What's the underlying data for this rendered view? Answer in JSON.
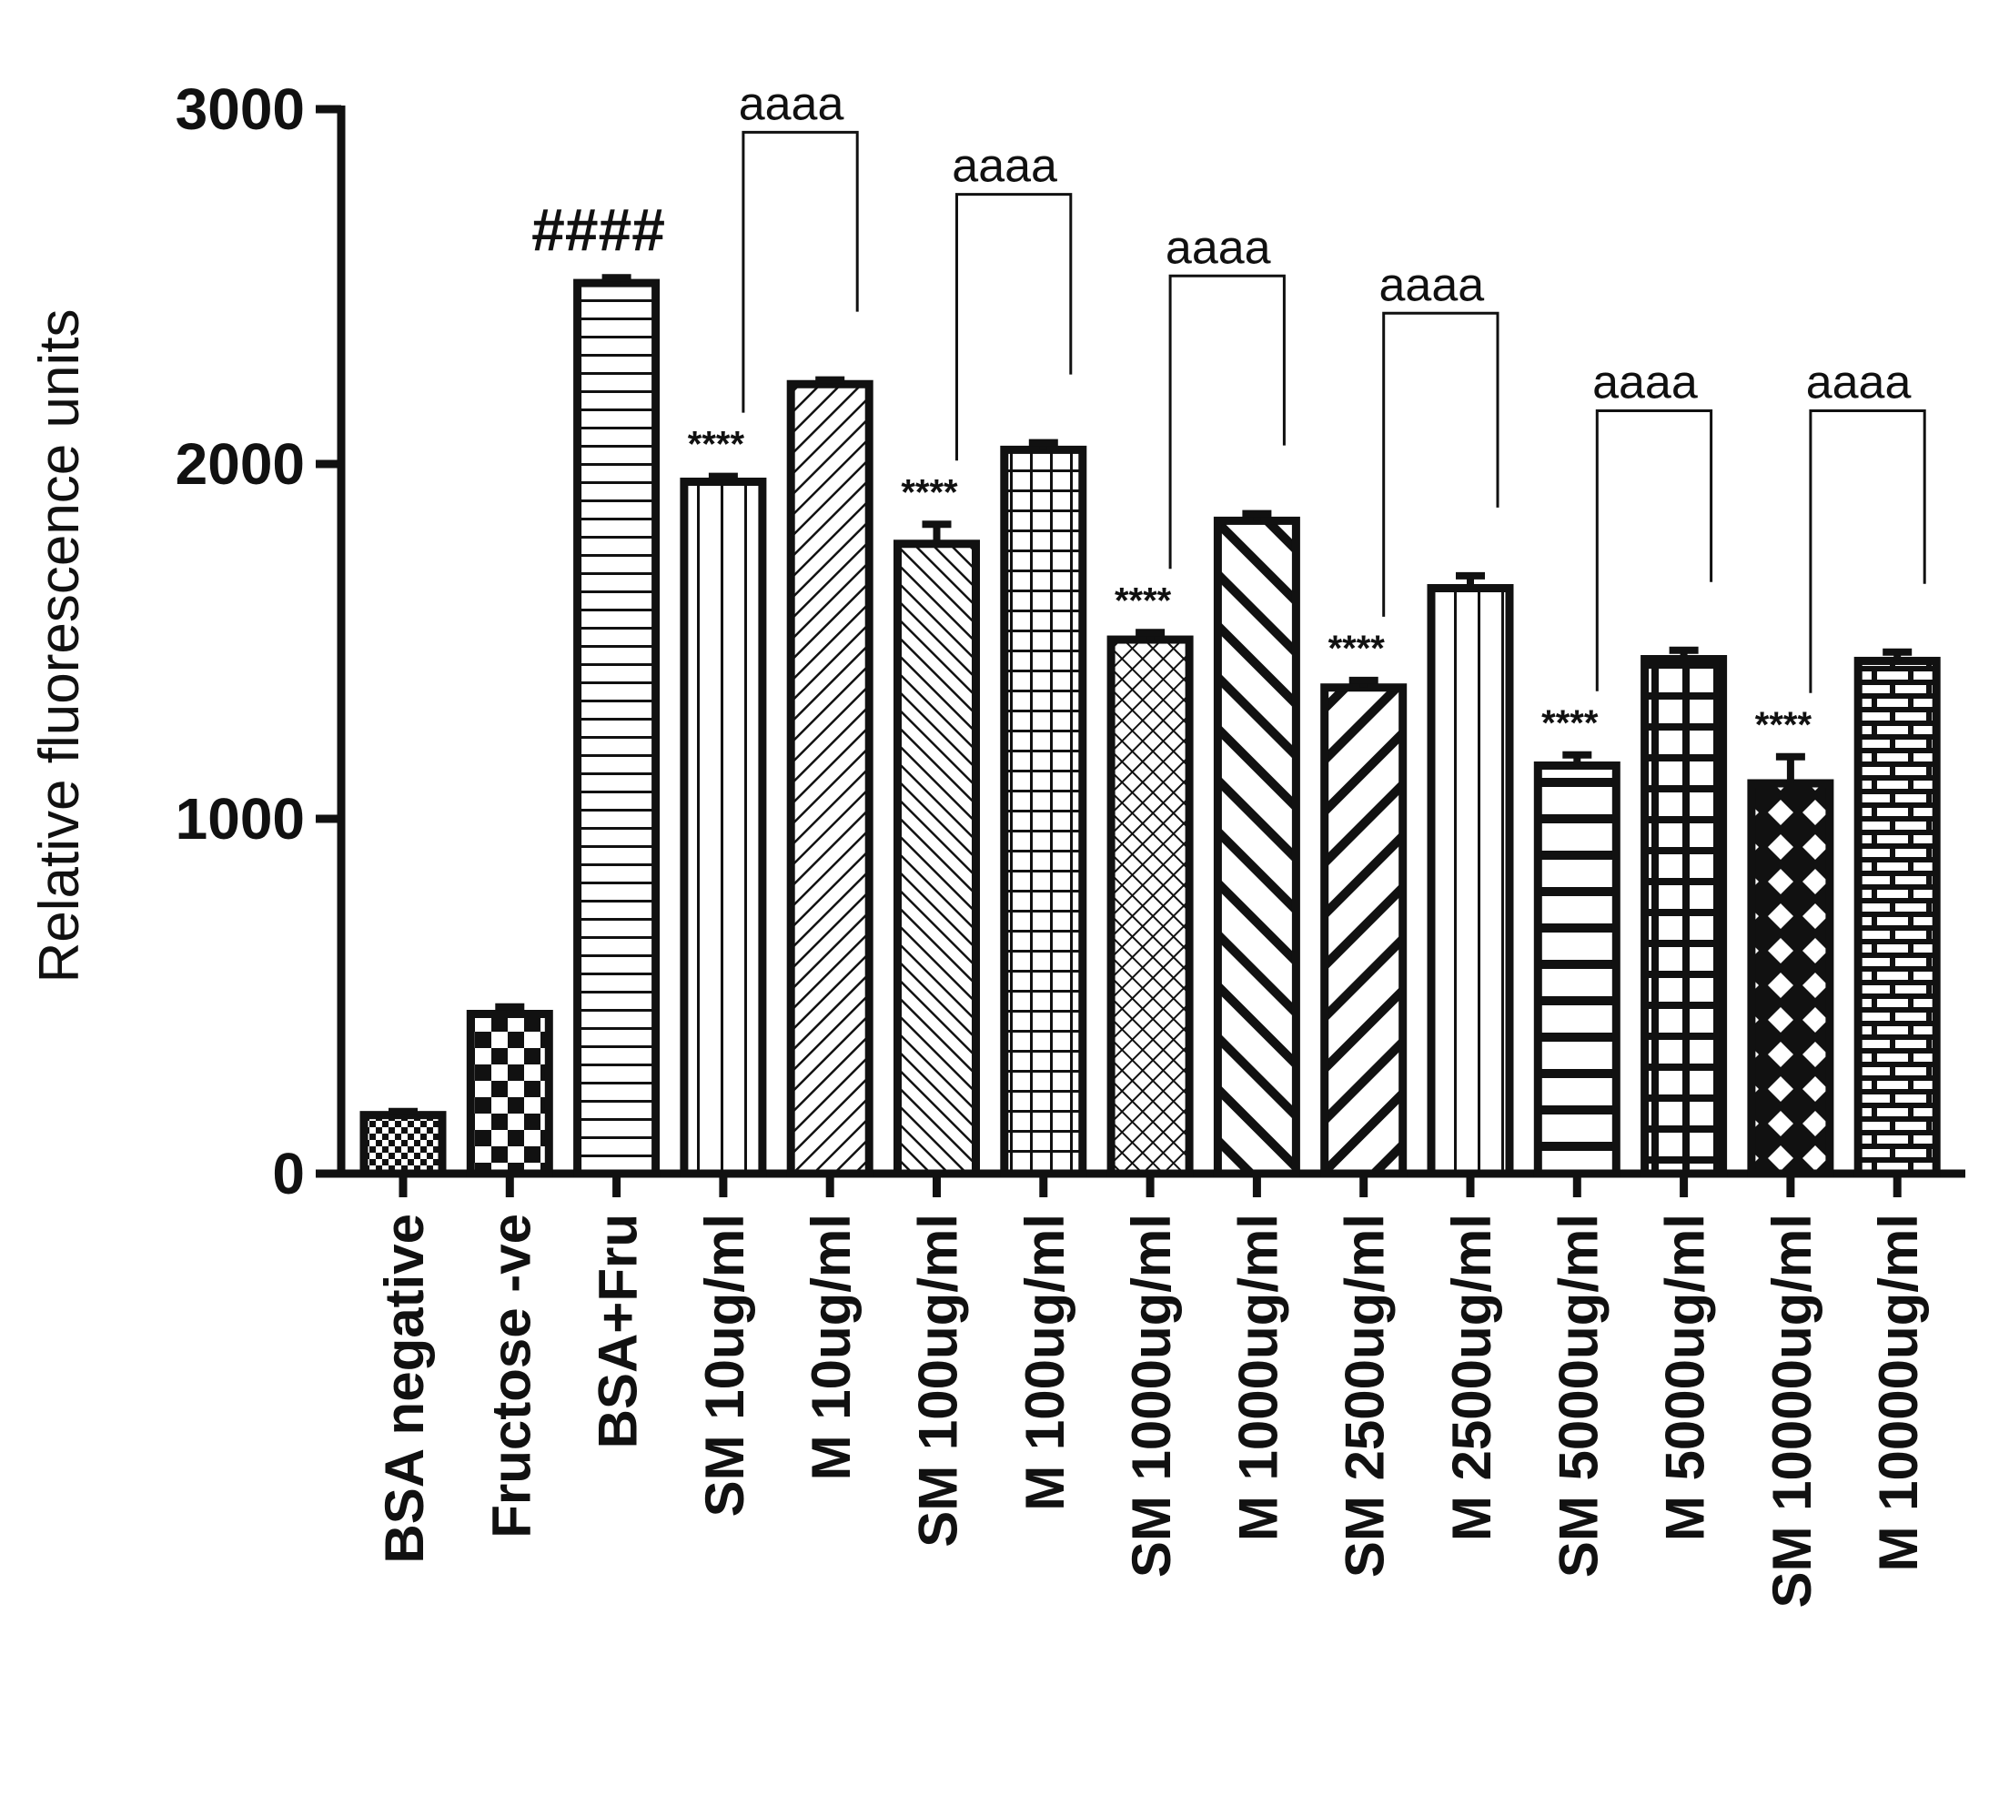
{
  "chart_data": {
    "type": "bar",
    "title": "",
    "xlabel": "",
    "ylabel": "Relative fluorescence units",
    "ylim": [
      0,
      3000
    ],
    "yticks": [
      "0",
      "1000",
      "2000",
      "3000"
    ],
    "grid": false,
    "legend": "none",
    "categories": [
      "BSA negative",
      "Fructose -ve",
      "BSA+Fru",
      "SM  10ug/ml",
      "M  10ug/ml",
      "SM  100ug/ml",
      "M  100ug/ml",
      "SM  1000ug/ml",
      "M  1000ug/ml",
      "SM  2500ug/ml",
      "M  2500ug/ml",
      "SM  5000ug/ml",
      "M  5000ug/ml",
      "SM  10000ug/ml",
      "M  10000ug/ml"
    ],
    "values": [
      165,
      450,
      2510,
      1950,
      2225,
      1775,
      2040,
      1505,
      1840,
      1370,
      1650,
      1150,
      1450,
      1100,
      1445
    ],
    "errors": [
      10,
      20,
      15,
      15,
      12,
      55,
      20,
      20,
      20,
      20,
      35,
      30,
      25,
      75,
      25
    ],
    "patterns": [
      "checker-fine",
      "checker-coarse",
      "horizontal-lines",
      "vertical-lines",
      "diagonal-fine",
      "diagonal-fine-reverse",
      "grid-fine",
      "crosshatch-fine",
      "diagonal-thick-reverse",
      "diagonal-thick",
      "vertical-lines",
      "horizontal-thick",
      "grid-thick",
      "diamond",
      "brick"
    ],
    "annotations": {
      "hash": {
        "bar": 2,
        "text": "####"
      },
      "stars": [
        {
          "bar": 3,
          "text": "****"
        },
        {
          "bar": 5,
          "text": "****"
        },
        {
          "bar": 7,
          "text": "****"
        },
        {
          "bar": 9,
          "text": "****"
        },
        {
          "bar": 11,
          "text": "****"
        },
        {
          "bar": 13,
          "text": "****"
        }
      ],
      "brackets": [
        {
          "from": 3,
          "to": 4,
          "text": "aaaa",
          "level": 2935
        },
        {
          "from": 5,
          "to": 6,
          "text": "aaaa",
          "level": 2760
        },
        {
          "from": 7,
          "to": 8,
          "text": "aaaa",
          "level": 2530
        },
        {
          "from": 9,
          "to": 10,
          "text": "aaaa",
          "level": 2425
        },
        {
          "from": 11,
          "to": 12,
          "text": "aaaa",
          "level": 2150
        },
        {
          "from": 13,
          "to": 14,
          "text": "aaaa",
          "level": 2150
        }
      ]
    },
    "colors": {
      "ink": "#111111",
      "background": "#ffffff"
    }
  }
}
